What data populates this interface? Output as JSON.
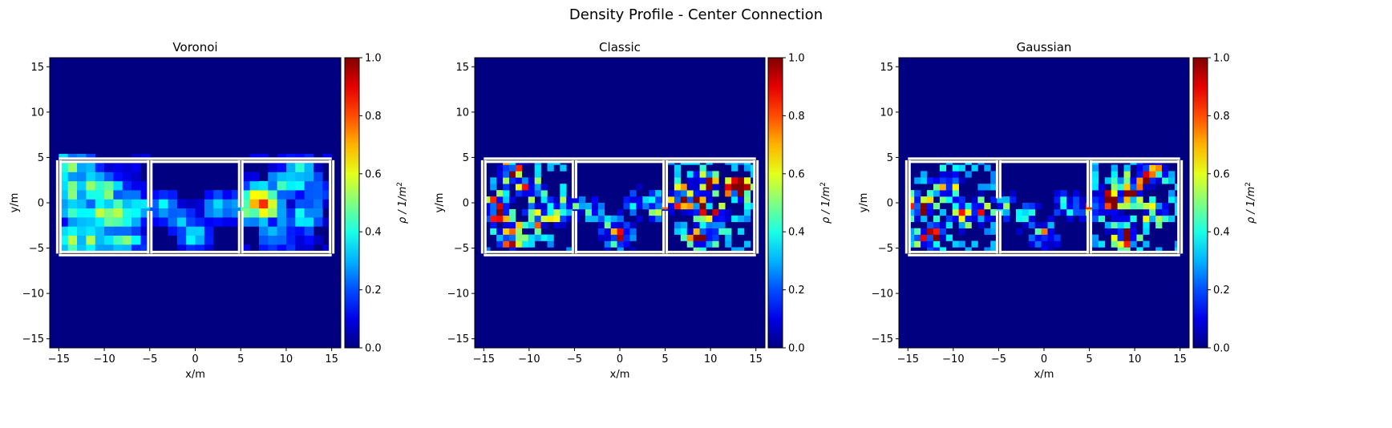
{
  "figure": {
    "title": "Density Profile - Center Connection"
  },
  "chart_data": [
    {
      "type": "heatmap",
      "title": "Voronoi",
      "xlabel": "x/m",
      "ylabel": "y/m",
      "xlim": [
        -16,
        16
      ],
      "ylim": [
        -16,
        16
      ],
      "xticks": [
        -15,
        -10,
        -5,
        0,
        5,
        10,
        15
      ],
      "yticks": [
        -15,
        -10,
        -5,
        0,
        5,
        10,
        15
      ],
      "colorbar": {
        "label": "ρ / 1/m²",
        "label_base": "ρ / 1/m",
        "label_sup": "2",
        "range": [
          0,
          1
        ],
        "ticks": [
          "0.0",
          "0.2",
          "0.4",
          "0.6",
          "0.8",
          "1.0"
        ],
        "colormap": "jet"
      },
      "background_density": 0.0,
      "geometry": {
        "outer_walls": [
          [
            -15,
            -5.6,
            15,
            4.7
          ]
        ],
        "room_dividers_x": [
          -5,
          5
        ],
        "door_gaps_y": [
          [
            -0.5,
            4.7
          ],
          [
            -0.5,
            4.7
          ]
        ]
      },
      "density_samples": [
        {
          "x": -14,
          "y": 3.7,
          "rho": 0.45
        },
        {
          "x": -12.5,
          "y": 3.3,
          "rho": 0.35
        },
        {
          "x": -13.5,
          "y": 1.5,
          "rho": 0.55
        },
        {
          "x": -11,
          "y": 1.8,
          "rho": 0.5
        },
        {
          "x": -9.5,
          "y": 1.5,
          "rho": 0.45
        },
        {
          "x": -13.7,
          "y": -0.5,
          "rho": 0.45
        },
        {
          "x": -12,
          "y": -1.5,
          "rho": 0.4
        },
        {
          "x": -10,
          "y": -1.2,
          "rho": 0.55
        },
        {
          "x": -8,
          "y": -1.2,
          "rho": 0.55
        },
        {
          "x": -13.7,
          "y": -4.3,
          "rho": 0.5
        },
        {
          "x": -11.5,
          "y": -4.0,
          "rho": 0.45
        },
        {
          "x": -9.5,
          "y": -4.2,
          "rho": 0.45
        },
        {
          "x": -7.5,
          "y": -4.0,
          "rho": 0.4
        },
        {
          "x": -6.5,
          "y": -0.8,
          "rho": 0.45
        },
        {
          "x": -3.5,
          "y": -0.5,
          "rho": 0.4
        },
        {
          "x": -1.5,
          "y": -2.0,
          "rho": 0.35
        },
        {
          "x": 0,
          "y": -3.6,
          "rho": 0.45
        },
        {
          "x": 2.5,
          "y": -0.5,
          "rho": 0.4
        },
        {
          "x": 5.5,
          "y": -0.3,
          "rho": 0.5
        },
        {
          "x": 7.5,
          "y": 0,
          "rho": 1.0
        },
        {
          "x": 9.5,
          "y": 2.0,
          "rho": 0.35
        },
        {
          "x": 11.5,
          "y": 3.0,
          "rho": 0.4
        },
        {
          "x": 12,
          "y": -1.5,
          "rho": 0.35
        },
        {
          "x": 9,
          "y": -3.5,
          "rho": 0.35
        },
        {
          "x": 13,
          "y": 1.0,
          "rho": 0.3
        }
      ]
    },
    {
      "type": "heatmap",
      "title": "Classic",
      "xlabel": "x/m",
      "ylabel": "y/m",
      "xlim": [
        -16,
        16
      ],
      "ylim": [
        -16,
        16
      ],
      "xticks": [
        -15,
        -10,
        -5,
        0,
        5,
        10,
        15
      ],
      "yticks": [
        -15,
        -10,
        -5,
        0,
        5,
        10,
        15
      ],
      "colorbar": {
        "label": "ρ / 1/m²",
        "label_base": "ρ / 1/m",
        "label_sup": "2",
        "range": [
          0,
          1
        ],
        "ticks": [
          "0.0",
          "0.2",
          "0.4",
          "0.6",
          "0.8",
          "1.0"
        ],
        "colormap": "jet"
      },
      "background_density": 0.0,
      "geometry": {
        "outer_walls": [
          [
            -15,
            -5.6,
            15,
            4.7
          ]
        ],
        "room_dividers_x": [
          -5,
          5
        ],
        "door_gaps_y": [
          [
            0.5,
            4.7
          ],
          [
            -0.5,
            4.7
          ]
        ]
      },
      "density_samples": [
        {
          "x": -13.5,
          "y": -0.7,
          "rho": 0.95
        },
        {
          "x": -12,
          "y": 3.3,
          "rho": 0.9
        },
        {
          "x": -10,
          "y": 1.5,
          "rho": 0.45
        },
        {
          "x": -9,
          "y": -1.5,
          "rho": 0.7
        },
        {
          "x": -7,
          "y": -0.8,
          "rho": 0.5
        },
        {
          "x": -5,
          "y": -0.3,
          "rho": 0.45
        },
        {
          "x": -3,
          "y": -1.0,
          "rho": 0.4
        },
        {
          "x": -1,
          "y": -2.5,
          "rho": 0.45
        },
        {
          "x": 0,
          "y": -3.8,
          "rho": 0.8
        },
        {
          "x": 2,
          "y": 0,
          "rho": 0.4
        },
        {
          "x": 4.5,
          "y": -0.3,
          "rho": 0.85
        },
        {
          "x": 7,
          "y": 0.5,
          "rho": 1.0
        },
        {
          "x": 8.5,
          "y": 0.0,
          "rho": 1.0
        },
        {
          "x": 9.5,
          "y": 2.0,
          "rho": 0.6
        },
        {
          "x": 11,
          "y": -1.5,
          "rho": 0.5
        },
        {
          "x": 13,
          "y": 1.5,
          "rho": 0.9
        },
        {
          "x": 9,
          "y": -3.5,
          "rho": 0.8
        },
        {
          "x": -12,
          "y": -3.5,
          "rho": 0.85
        }
      ]
    },
    {
      "type": "heatmap",
      "title": "Gaussian",
      "xlabel": "x/m",
      "ylabel": "y/m",
      "xlim": [
        -16,
        16
      ],
      "ylim": [
        -16,
        16
      ],
      "xticks": [
        -15,
        -10,
        -5,
        0,
        5,
        10,
        15
      ],
      "yticks": [
        -15,
        -10,
        -5,
        0,
        5,
        10,
        15
      ],
      "colorbar": {
        "label": "ρ / 1/m²",
        "label_base": "ρ / 1/m",
        "label_sup": "2",
        "range": [
          0,
          1
        ],
        "ticks": [
          "0.0",
          "0.2",
          "0.4",
          "0.6",
          "0.8",
          "1.0"
        ],
        "colormap": "jet"
      },
      "background_density": 0.0,
      "geometry": {
        "outer_walls": [
          [
            -15,
            -5.6,
            15,
            4.7
          ]
        ],
        "room_dividers_x": [
          -5,
          5
        ],
        "door_gaps_y": [
          [
            0.5,
            4.7
          ],
          [
            -0.5,
            4.7
          ]
        ]
      },
      "density_samples": [
        {
          "x": -13.5,
          "y": -0.5,
          "rho": 0.85
        },
        {
          "x": -11,
          "y": 2.0,
          "rho": 0.7
        },
        {
          "x": -9,
          "y": -1.2,
          "rho": 0.75
        },
        {
          "x": -7.5,
          "y": -0.8,
          "rho": 0.55
        },
        {
          "x": -12.5,
          "y": -3.8,
          "rho": 0.7
        },
        {
          "x": -4.5,
          "y": -0.5,
          "rho": 0.4
        },
        {
          "x": -2,
          "y": -1.5,
          "rho": 0.4
        },
        {
          "x": 0,
          "y": -3.5,
          "rho": 0.6
        },
        {
          "x": 2.5,
          "y": -0.3,
          "rho": 0.4
        },
        {
          "x": 5.5,
          "y": -0.3,
          "rho": 0.75
        },
        {
          "x": 7.5,
          "y": 0.2,
          "rho": 1.0
        },
        {
          "x": 9.5,
          "y": 1.5,
          "rho": 0.8
        },
        {
          "x": 11.5,
          "y": 3.2,
          "rho": 0.85
        },
        {
          "x": 12,
          "y": -1.0,
          "rho": 0.4
        },
        {
          "x": 9,
          "y": -3.5,
          "rho": 0.7
        }
      ]
    }
  ]
}
